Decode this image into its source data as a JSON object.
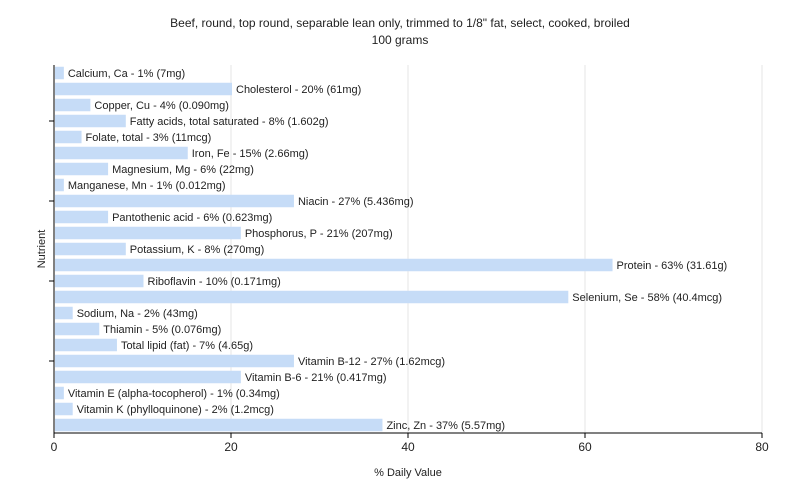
{
  "chart_data": {
    "type": "bar",
    "orientation": "horizontal",
    "title": "Beef, round, top round, separable lean only, trimmed to 1/8\" fat, select, cooked, broiled",
    "subtitle": "100 grams",
    "xlabel": "% Daily Value",
    "ylabel": "Nutrient",
    "xlim": [
      0,
      80
    ],
    "xticks": [
      0,
      20,
      40,
      60,
      80
    ],
    "grid": true,
    "bar_color": "#c6dcf7",
    "categories": [
      "Calcium, Ca",
      "Cholesterol",
      "Copper, Cu",
      "Fatty acids, total saturated",
      "Folate, total",
      "Iron, Fe",
      "Magnesium, Mg",
      "Manganese, Mn",
      "Niacin",
      "Pantothenic acid",
      "Phosphorus, P",
      "Potassium, K",
      "Protein",
      "Riboflavin",
      "Selenium, Se",
      "Sodium, Na",
      "Thiamin",
      "Total lipid (fat)",
      "Vitamin B-12",
      "Vitamin B-6",
      "Vitamin E (alpha-tocopherol)",
      "Vitamin K (phylloquinone)",
      "Zinc, Zn"
    ],
    "values": [
      1,
      20,
      4,
      8,
      3,
      15,
      6,
      1,
      27,
      6,
      21,
      8,
      63,
      10,
      58,
      2,
      5,
      7,
      27,
      21,
      1,
      2,
      37
    ],
    "labels": [
      "Calcium, Ca - 1% (7mg)",
      "Cholesterol - 20% (61mg)",
      "Copper, Cu - 4% (0.090mg)",
      "Fatty acids, total saturated - 8% (1.602g)",
      "Folate, total - 3% (11mcg)",
      "Iron, Fe - 15% (2.66mg)",
      "Magnesium, Mg - 6% (22mg)",
      "Manganese, Mn - 1% (0.012mg)",
      "Niacin - 27% (5.436mg)",
      "Pantothenic acid - 6% (0.623mg)",
      "Phosphorus, P - 21% (207mg)",
      "Potassium, K - 8% (270mg)",
      "Protein - 63% (31.61g)",
      "Riboflavin - 10% (0.171mg)",
      "Selenium, Se - 58% (40.4mcg)",
      "Sodium, Na - 2% (43mg)",
      "Thiamin - 5% (0.076mg)",
      "Total lipid (fat) - 7% (4.65g)",
      "Vitamin B-12 - 27% (1.62mcg)",
      "Vitamin B-6 - 21% (0.417mg)",
      "Vitamin E (alpha-tocopherol) - 1% (0.34mg)",
      "Vitamin K (phylloquinone) - 2% (1.2mcg)",
      "Zinc, Zn - 37% (5.57mg)"
    ]
  }
}
